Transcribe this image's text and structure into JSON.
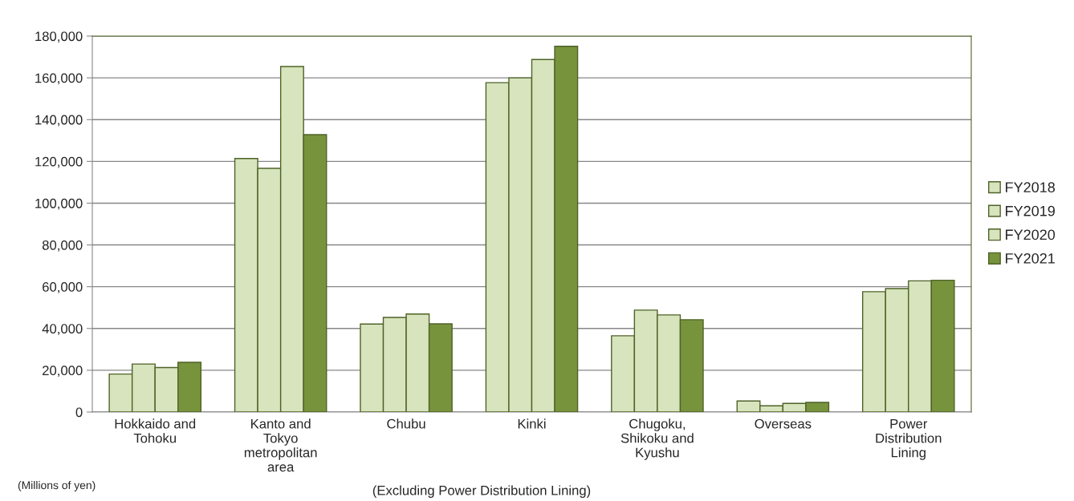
{
  "chart_data": {
    "type": "bar",
    "categories": [
      "Hokkaido and\nTohoku",
      "Kanto and\nTokyo\nmetropolitan\narea",
      "Chubu",
      "Kinki",
      "Chugoku,\nShikoku and\nKyushu",
      "Overseas",
      "Power\nDistribution\nLining"
    ],
    "series": [
      {
        "name": "FY2018",
        "color": "#d7e4bd",
        "values": [
          18200,
          121400,
          42100,
          157700,
          36500,
          5300,
          57600
        ]
      },
      {
        "name": "FY2019",
        "color": "#d7e4bd",
        "values": [
          23000,
          116700,
          45300,
          160000,
          48800,
          3000,
          59100
        ]
      },
      {
        "name": "FY2020",
        "color": "#d7e4bd",
        "values": [
          21300,
          165400,
          46900,
          168800,
          46500,
          4100,
          62800
        ]
      },
      {
        "name": "FY2021",
        "color": "#77933c",
        "values": [
          23800,
          132800,
          42200,
          175100,
          44200,
          4600,
          63100
        ]
      }
    ],
    "ylim": [
      0,
      180000
    ],
    "yticks": [
      0,
      {
        "value": 20000,
        "label": "20,000"
      },
      {
        "value": 40000,
        "label": "40,000"
      },
      {
        "value": 60000,
        "label": "60,000"
      },
      {
        "value": 80000,
        "label": "80,000"
      },
      {
        "value": 100000,
        "label": "100,000"
      },
      {
        "value": 120000,
        "label": "120,000"
      },
      {
        "value": 140000,
        "label": "140,000"
      },
      {
        "value": 160000,
        "label": "160,000"
      },
      {
        "value": 180000,
        "label": "180,000"
      }
    ],
    "grid": "y",
    "legend": "right",
    "annotations": [
      "(Millions of yen)",
      "(Excluding Power Distribution Lining)"
    ]
  }
}
